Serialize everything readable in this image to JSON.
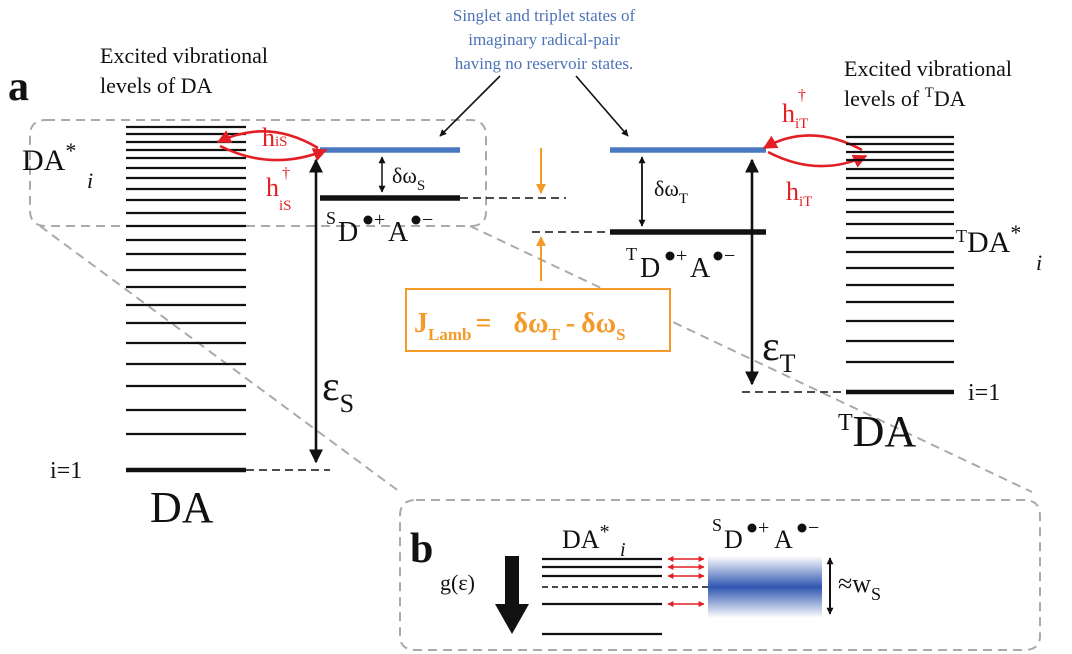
{
  "panel_a": {
    "label": "a"
  },
  "panel_b": {
    "label": "b"
  },
  "annotation_top": {
    "lines": [
      "Singlet and triplet states of",
      "imaginary radical-pair",
      "having no reservoir states."
    ]
  },
  "left_ladder": {
    "caption_lines": [
      "Excited vibrational",
      "levels of DA"
    ],
    "excited_label": "DA",
    "excited_super": "*",
    "excited_sub": "i",
    "ground_index": "i=1",
    "ground_label": "DA"
  },
  "right_ladder": {
    "caption_line1": "Excited vibrational",
    "caption_line2_pre": "levels of ",
    "caption_line2_sup": "T",
    "caption_line2_post": "DA",
    "excited_sup": "T",
    "excited_label": "DA",
    "excited_super": "*",
    "excited_sub": "i",
    "ground_index": "i=1",
    "ground_sup": "T",
    "ground_label": "DA"
  },
  "singlet": {
    "coupling_down": {
      "main": "h",
      "sub": "iS"
    },
    "coupling_up": {
      "main": "h",
      "sup": "†",
      "sub": "iS"
    },
    "gap_label": {
      "main": "δω",
      "sub": "S"
    },
    "state_label": {
      "spin": "S",
      "d": "D",
      "a": "A",
      "d_charge": "+",
      "a_charge": "−"
    },
    "energy": {
      "main": "ε",
      "sub": "S"
    }
  },
  "triplet": {
    "coupling_up": {
      "main": "h",
      "sup": "†",
      "sub": "iT"
    },
    "coupling_down": {
      "main": "h",
      "sub": "iT"
    },
    "gap_label": {
      "main": "δω",
      "sub": "T"
    },
    "state_label": {
      "spin": "T",
      "d": "D",
      "a": "A",
      "d_charge": "+",
      "a_charge": "−"
    },
    "energy": {
      "main": "ε",
      "sub": "T"
    }
  },
  "lamb_box": {
    "j": "J",
    "j_sub": "Lamb",
    "eq": "=",
    "t_main": "δω",
    "t_sub": "T",
    "minus": "-",
    "s_main": "δω",
    "s_sub": "S"
  },
  "inset_b": {
    "ladder_label": "DA",
    "ladder_super": "*",
    "ladder_sub": "i",
    "state_label": {
      "spin": "S",
      "d": "D",
      "a": "A",
      "d_charge": "+",
      "a_charge": "−"
    },
    "dos_label": "g(ε)",
    "width_label": "≈w",
    "width_sub": "S"
  },
  "colors": {
    "blue_level": "#4a78c0",
    "coupling_red": "#e31e24",
    "lamb_orange": "#f39a2a",
    "annotation_blue": "#4e72b8",
    "dashed_gray": "#aaaaaa",
    "black": "#111111"
  }
}
